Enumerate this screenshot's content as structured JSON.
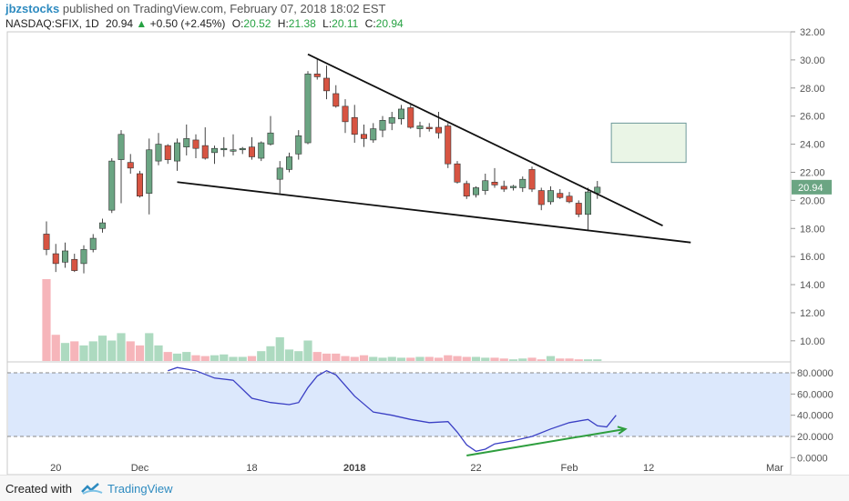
{
  "header": {
    "publisher": "jbzstocks",
    "published_text": "published on TradingView.com, February 07, 2018 18:02 EST",
    "symbol": "NASDAQ:SFIX, 1D",
    "last": "20.94",
    "change": "+0.50 (+2.45%)",
    "o_label": "O:",
    "o_value": "20.52",
    "h_label": "H:",
    "h_value": "21.38",
    "l_label": "L:",
    "l_value": "20.11",
    "c_label": "C:",
    "c_value": "20.94",
    "up_color": "#27a243",
    "user_color": "#2e8bc0"
  },
  "footer": {
    "created_with": "Created with",
    "brand": "TradingView",
    "logo_icon": "tradingview-logo-icon"
  },
  "chart_data": [
    {
      "type": "candlestick",
      "panel": "price",
      "ylim": [
        8.5,
        32.0
      ],
      "y_ticks": [
        "32.00",
        "30.00",
        "28.00",
        "26.00",
        "24.00",
        "22.00",
        "20.00",
        "18.00",
        "16.00",
        "14.00",
        "12.00",
        "10.00"
      ],
      "x_ticks": [
        "20",
        "Dec",
        "18",
        "2018",
        "22",
        "Feb",
        "12",
        "Mar"
      ],
      "last_price_label": "20.94",
      "up_color": "#6ba583",
      "down_color": "#d75442",
      "candles": [
        {
          "o": 17.6,
          "h": 18.5,
          "l": 16.1,
          "c": 16.5
        },
        {
          "o": 16.2,
          "h": 16.9,
          "l": 14.9,
          "c": 15.5
        },
        {
          "o": 15.6,
          "h": 17.0,
          "l": 15.2,
          "c": 16.4
        },
        {
          "o": 15.8,
          "h": 16.2,
          "l": 14.9,
          "c": 15.0
        },
        {
          "o": 15.5,
          "h": 16.8,
          "l": 14.8,
          "c": 16.5
        },
        {
          "o": 16.5,
          "h": 17.6,
          "l": 16.3,
          "c": 17.3
        },
        {
          "o": 18.0,
          "h": 18.7,
          "l": 17.7,
          "c": 18.4
        },
        {
          "o": 19.3,
          "h": 23.0,
          "l": 19.1,
          "c": 22.8
        },
        {
          "o": 22.9,
          "h": 25.0,
          "l": 19.8,
          "c": 24.7
        },
        {
          "o": 22.7,
          "h": 23.3,
          "l": 21.9,
          "c": 22.3
        },
        {
          "o": 21.9,
          "h": 22.1,
          "l": 20.2,
          "c": 20.3
        },
        {
          "o": 20.5,
          "h": 24.4,
          "l": 19.0,
          "c": 23.6
        },
        {
          "o": 22.8,
          "h": 24.8,
          "l": 22.5,
          "c": 24.0
        },
        {
          "o": 23.9,
          "h": 24.0,
          "l": 22.6,
          "c": 22.9
        },
        {
          "o": 22.8,
          "h": 24.4,
          "l": 22.1,
          "c": 24.1
        },
        {
          "o": 23.8,
          "h": 25.4,
          "l": 23.2,
          "c": 24.4
        },
        {
          "o": 24.3,
          "h": 24.7,
          "l": 23.0,
          "c": 23.7
        },
        {
          "o": 23.9,
          "h": 25.2,
          "l": 22.9,
          "c": 23.0
        },
        {
          "o": 23.4,
          "h": 23.9,
          "l": 22.6,
          "c": 23.7
        },
        {
          "o": 23.6,
          "h": 24.5,
          "l": 23.1,
          "c": 23.7
        },
        {
          "o": 23.5,
          "h": 24.7,
          "l": 23.2,
          "c": 23.6
        },
        {
          "o": 23.6,
          "h": 23.8,
          "l": 23.3,
          "c": 23.7
        },
        {
          "o": 23.8,
          "h": 24.5,
          "l": 22.9,
          "c": 23.1
        },
        {
          "o": 23.0,
          "h": 24.2,
          "l": 22.8,
          "c": 24.1
        },
        {
          "o": 24.0,
          "h": 26.0,
          "l": 23.9,
          "c": 24.8
        },
        {
          "o": 21.5,
          "h": 22.8,
          "l": 20.5,
          "c": 22.3
        },
        {
          "o": 22.2,
          "h": 23.4,
          "l": 22.0,
          "c": 23.1
        },
        {
          "o": 23.3,
          "h": 25.0,
          "l": 22.9,
          "c": 24.6
        },
        {
          "o": 24.1,
          "h": 29.2,
          "l": 24.0,
          "c": 29.0
        },
        {
          "o": 29.0,
          "h": 30.1,
          "l": 28.6,
          "c": 28.8
        },
        {
          "o": 28.7,
          "h": 29.6,
          "l": 27.2,
          "c": 27.8
        },
        {
          "o": 27.6,
          "h": 28.2,
          "l": 26.6,
          "c": 26.7
        },
        {
          "o": 26.7,
          "h": 27.2,
          "l": 24.8,
          "c": 25.6
        },
        {
          "o": 25.9,
          "h": 26.8,
          "l": 24.1,
          "c": 24.7
        },
        {
          "o": 24.7,
          "h": 25.4,
          "l": 23.8,
          "c": 24.4
        },
        {
          "o": 24.3,
          "h": 25.5,
          "l": 24.1,
          "c": 25.1
        },
        {
          "o": 25.0,
          "h": 26.0,
          "l": 24.5,
          "c": 25.7
        },
        {
          "o": 25.5,
          "h": 26.3,
          "l": 25.0,
          "c": 25.9
        },
        {
          "o": 25.8,
          "h": 26.8,
          "l": 25.4,
          "c": 26.5
        },
        {
          "o": 26.6,
          "h": 26.8,
          "l": 25.1,
          "c": 25.2
        },
        {
          "o": 25.1,
          "h": 25.6,
          "l": 24.5,
          "c": 25.3
        },
        {
          "o": 25.2,
          "h": 25.5,
          "l": 24.9,
          "c": 25.1
        },
        {
          "o": 25.2,
          "h": 26.3,
          "l": 24.4,
          "c": 24.8
        },
        {
          "o": 25.3,
          "h": 25.5,
          "l": 22.3,
          "c": 22.6
        },
        {
          "o": 22.6,
          "h": 22.8,
          "l": 21.2,
          "c": 21.3
        },
        {
          "o": 21.2,
          "h": 21.4,
          "l": 20.1,
          "c": 20.3
        },
        {
          "o": 20.4,
          "h": 21.0,
          "l": 20.2,
          "c": 20.9
        },
        {
          "o": 20.7,
          "h": 21.9,
          "l": 20.4,
          "c": 21.4
        },
        {
          "o": 21.3,
          "h": 22.3,
          "l": 20.9,
          "c": 21.1
        },
        {
          "o": 21.0,
          "h": 21.4,
          "l": 20.6,
          "c": 20.8
        },
        {
          "o": 20.9,
          "h": 21.1,
          "l": 20.7,
          "c": 21.0
        },
        {
          "o": 20.9,
          "h": 21.7,
          "l": 20.6,
          "c": 21.5
        },
        {
          "o": 22.2,
          "h": 22.4,
          "l": 20.6,
          "c": 20.8
        },
        {
          "o": 20.7,
          "h": 20.9,
          "l": 19.3,
          "c": 19.7
        },
        {
          "o": 19.9,
          "h": 21.0,
          "l": 19.7,
          "c": 20.7
        },
        {
          "o": 20.5,
          "h": 20.8,
          "l": 20.1,
          "c": 20.2
        },
        {
          "o": 20.3,
          "h": 20.6,
          "l": 19.8,
          "c": 19.9
        },
        {
          "o": 19.8,
          "h": 20.0,
          "l": 18.8,
          "c": 19.0
        },
        {
          "o": 19.0,
          "h": 20.9,
          "l": 17.9,
          "c": 20.6
        },
        {
          "o": 20.52,
          "h": 21.38,
          "l": 20.11,
          "c": 20.94
        }
      ],
      "volume_heights_rel": [
        1.0,
        0.32,
        0.22,
        0.24,
        0.19,
        0.24,
        0.31,
        0.25,
        0.34,
        0.24,
        0.19,
        0.34,
        0.19,
        0.11,
        0.09,
        0.11,
        0.07,
        0.06,
        0.07,
        0.08,
        0.05,
        0.05,
        0.06,
        0.12,
        0.18,
        0.29,
        0.14,
        0.12,
        0.25,
        0.11,
        0.09,
        0.09,
        0.06,
        0.05,
        0.07,
        0.05,
        0.04,
        0.05,
        0.04,
        0.04,
        0.05,
        0.05,
        0.04,
        0.07,
        0.06,
        0.05,
        0.05,
        0.04,
        0.04,
        0.03,
        0.02,
        0.03,
        0.04,
        0.02,
        0.06,
        0.03,
        0.03,
        0.02,
        0.02,
        0.02
      ],
      "trendlines": [
        {
          "name": "upper-resistance",
          "from": [
            28,
            30.4
          ],
          "to": [
            66,
            18.2
          ]
        },
        {
          "name": "lower-support",
          "from": [
            14,
            21.3
          ],
          "to": [
            69,
            17.0
          ]
        }
      ],
      "target_box": {
        "x_from": 60.5,
        "x_to": 68.5,
        "y_from": 22.7,
        "y_to": 25.5
      }
    },
    {
      "type": "line",
      "panel": "oscillator",
      "ylim": [
        0,
        90
      ],
      "y_ticks": [
        "80.0000",
        "60.0000",
        "40.0000",
        "20.0000",
        "0.0000"
      ],
      "bands": [
        20,
        80
      ],
      "series": [
        {
          "values": [
            {
              "i": 13,
              "v": 82
            },
            {
              "i": 14,
              "v": 85
            },
            {
              "i": 16,
              "v": 82
            },
            {
              "i": 18,
              "v": 75
            },
            {
              "i": 20,
              "v": 73
            },
            {
              "i": 22,
              "v": 56
            },
            {
              "i": 24,
              "v": 52
            },
            {
              "i": 26,
              "v": 50
            },
            {
              "i": 27,
              "v": 52
            },
            {
              "i": 28,
              "v": 66
            },
            {
              "i": 29,
              "v": 77
            },
            {
              "i": 30,
              "v": 82
            },
            {
              "i": 31,
              "v": 78
            },
            {
              "i": 33,
              "v": 58
            },
            {
              "i": 35,
              "v": 43
            },
            {
              "i": 37,
              "v": 40
            },
            {
              "i": 39,
              "v": 36
            },
            {
              "i": 41,
              "v": 33
            },
            {
              "i": 43,
              "v": 34
            },
            {
              "i": 44,
              "v": 24
            },
            {
              "i": 45,
              "v": 12
            },
            {
              "i": 46,
              "v": 6
            },
            {
              "i": 47,
              "v": 8
            },
            {
              "i": 48,
              "v": 13
            },
            {
              "i": 50,
              "v": 16
            },
            {
              "i": 52,
              "v": 20
            },
            {
              "i": 54,
              "v": 27
            },
            {
              "i": 56,
              "v": 33
            },
            {
              "i": 58,
              "v": 36
            },
            {
              "i": 59,
              "v": 30
            },
            {
              "i": 60,
              "v": 29
            },
            {
              "i": 61,
              "v": 40
            }
          ]
        }
      ],
      "divergence_arrow": {
        "from": [
          45,
          2
        ],
        "to": [
          62,
          27
        ]
      }
    }
  ]
}
